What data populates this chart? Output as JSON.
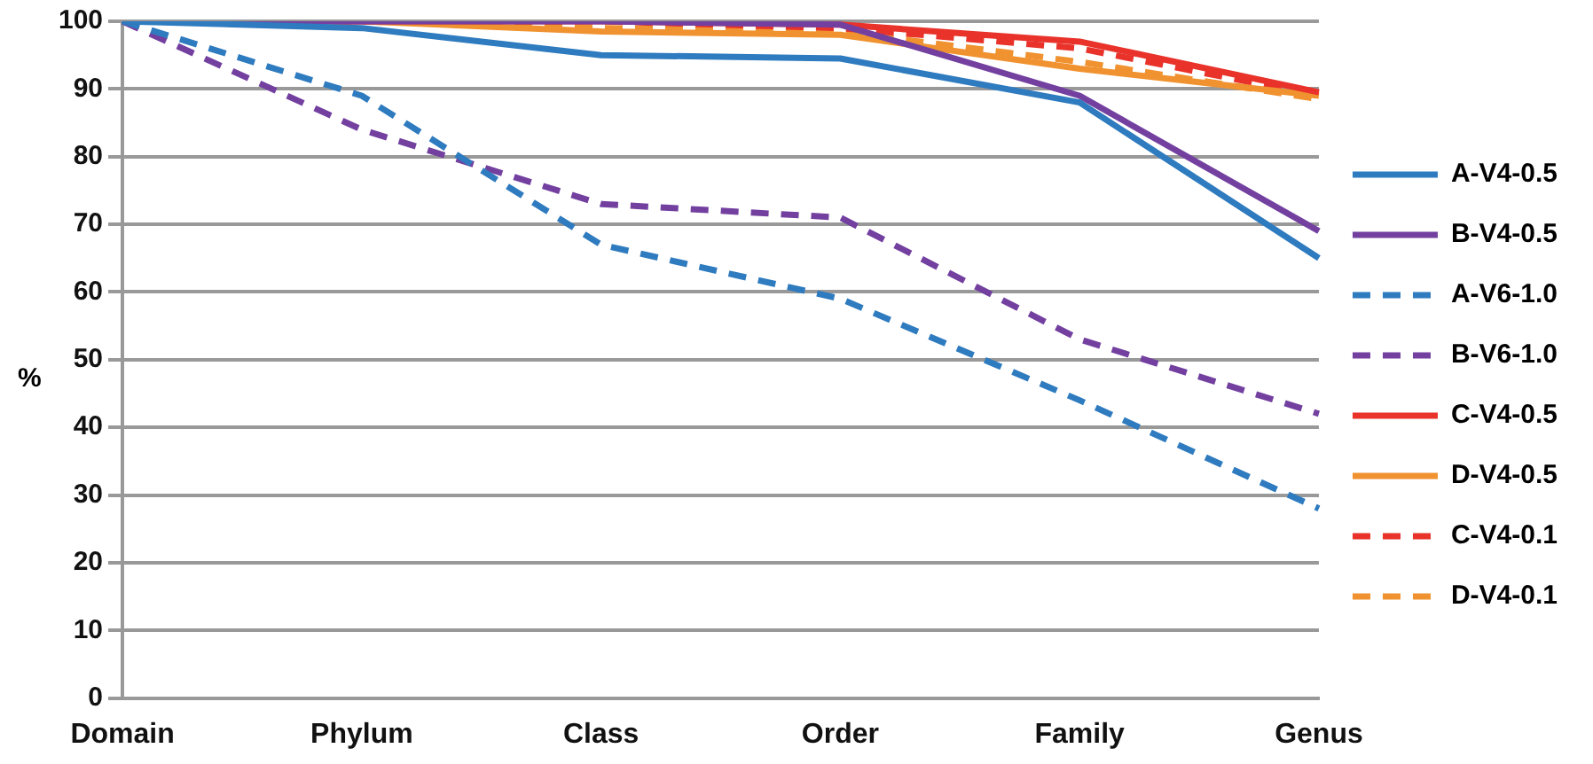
{
  "chart_data": {
    "type": "line",
    "ylabel": "%",
    "categories": [
      "Domain",
      "Phylum",
      "Class",
      "Order",
      "Family",
      "Genus"
    ],
    "ylim": [
      0,
      100
    ],
    "yticks": [
      0,
      10,
      20,
      30,
      40,
      50,
      60,
      70,
      80,
      90,
      100
    ],
    "grid": "y",
    "legend": "right",
    "marker": "none",
    "series": [
      {
        "name": "A-V4-0.5",
        "color": "#2f7bbf",
        "line_style": "solid",
        "values": [
          100,
          99,
          95,
          94.5,
          88,
          65
        ]
      },
      {
        "name": "B-V4-0.5",
        "color": "#7340a0",
        "line_style": "solid",
        "values": [
          100,
          100,
          100,
          99.5,
          89,
          69
        ]
      },
      {
        "name": "A-V6-1.0",
        "color": "#2f7bbf",
        "line_style": "dashed",
        "values": [
          100,
          89,
          67,
          59,
          44,
          28
        ]
      },
      {
        "name": "B-V6-1.0",
        "color": "#7340a0",
        "line_style": "dashed",
        "values": [
          100,
          84,
          73,
          71,
          53,
          42
        ]
      },
      {
        "name": "C-V4-0.5",
        "color": "#e8322a",
        "line_style": "solid",
        "values": [
          100,
          100,
          100,
          99.5,
          97,
          89.5
        ]
      },
      {
        "name": "D-V4-0.5",
        "color": "#f0922f",
        "line_style": "solid",
        "values": [
          100,
          100,
          98.5,
          98,
          93,
          89
        ]
      },
      {
        "name": "C-V4-0.1",
        "color": "#e8322a",
        "line_style": "dashed",
        "values": [
          100,
          100,
          100,
          99,
          96,
          89
        ]
      },
      {
        "name": "D-V4-0.1",
        "color": "#f0922f",
        "line_style": "dashed",
        "values": [
          100,
          100,
          99,
          98.5,
          94,
          88.5
        ]
      }
    ]
  }
}
